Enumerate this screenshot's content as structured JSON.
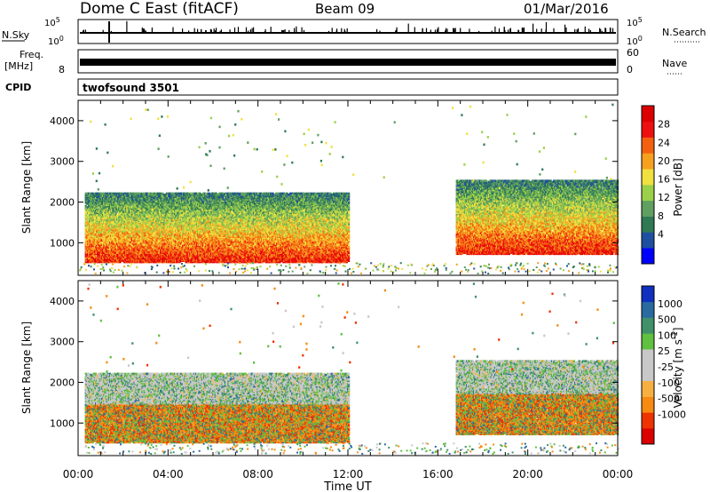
{
  "header": {
    "station": "Dome C East (fitACF)",
    "beam": "Beam 09",
    "date": "01/Mar/2016"
  },
  "top_panels": {
    "nsky_label": "N.Sky",
    "nsky_ticks": [
      "10^5",
      "10^0"
    ],
    "nsearch_label": "N.Search",
    "nsearch_ticks": [
      "10^5",
      "10^0"
    ],
    "freq_label": "Freq.",
    "freq_unit": "[MHz]",
    "freq_ticks": [
      "8"
    ],
    "nave_label": "Nave",
    "nave_ticks": [
      "60",
      "0"
    ],
    "cpid_label": "CPID",
    "cpid_value": "twofsound 3501"
  },
  "chart_data": [
    {
      "type": "heatmap",
      "title": "",
      "quantity": "Power",
      "ylabel": "Slant Range [km]",
      "xlabel": "Time UT",
      "ylim": [
        200,
        4500
      ],
      "xlim": [
        "00:00",
        "24:00"
      ],
      "yticks": [
        "1000",
        "2000",
        "3000",
        "4000"
      ],
      "xticks": [
        "00:00",
        "04:00",
        "08:00",
        "12:00",
        "16:00",
        "20:00",
        "00:00"
      ],
      "colorbar": {
        "label": "Power [dB]",
        "ticks": [
          "28",
          "24",
          "20",
          "16",
          "12",
          "8",
          "4"
        ],
        "colors": [
          "#0000ff",
          "#1f4fa0",
          "#2f7a55",
          "#5fa060",
          "#9ad04a",
          "#f0e040",
          "#f7a020",
          "#f36010",
          "#ee1010",
          "#dd0000"
        ]
      },
      "echo_regions": [
        {
          "from_h": 0.3,
          "to_h": 12.0,
          "range_km": [
            500,
            2200
          ],
          "typical_db": 24
        },
        {
          "from_h": 16.8,
          "to_h": 24.0,
          "range_km": [
            700,
            2500
          ],
          "typical_db": 20
        }
      ]
    },
    {
      "type": "heatmap",
      "title": "",
      "quantity": "Velocity",
      "ylabel": "Slant Range [km]",
      "xlabel": "Time UT",
      "ylim": [
        200,
        4500
      ],
      "xlim": [
        "00:00",
        "24:00"
      ],
      "yticks": [
        "1000",
        "2000",
        "3000",
        "4000"
      ],
      "xticks": [
        "00:00",
        "04:00",
        "08:00",
        "12:00",
        "16:00",
        "20:00",
        "00:00"
      ],
      "colorbar": {
        "label": "Velocity [m s^-1]",
        "ticks": [
          "1000",
          "500",
          "100",
          "25",
          "-25",
          "-100",
          "-500",
          "-1000"
        ],
        "colors": [
          "#dd0000",
          "#ee3300",
          "#f78a10",
          "#f7b040",
          "#c8c8c8",
          "#c8c8c8",
          "#60c040",
          "#40906a",
          "#2a6aa0",
          "#1030c0"
        ]
      },
      "echo_regions": [
        {
          "from_h": 0.3,
          "to_h": 12.0,
          "range_km": [
            500,
            2200
          ],
          "typical_velocity": -100
        },
        {
          "from_h": 16.8,
          "to_h": 24.0,
          "range_km": [
            700,
            2500
          ],
          "typical_velocity": 25
        }
      ]
    }
  ],
  "xaxis_title": "Time UT"
}
